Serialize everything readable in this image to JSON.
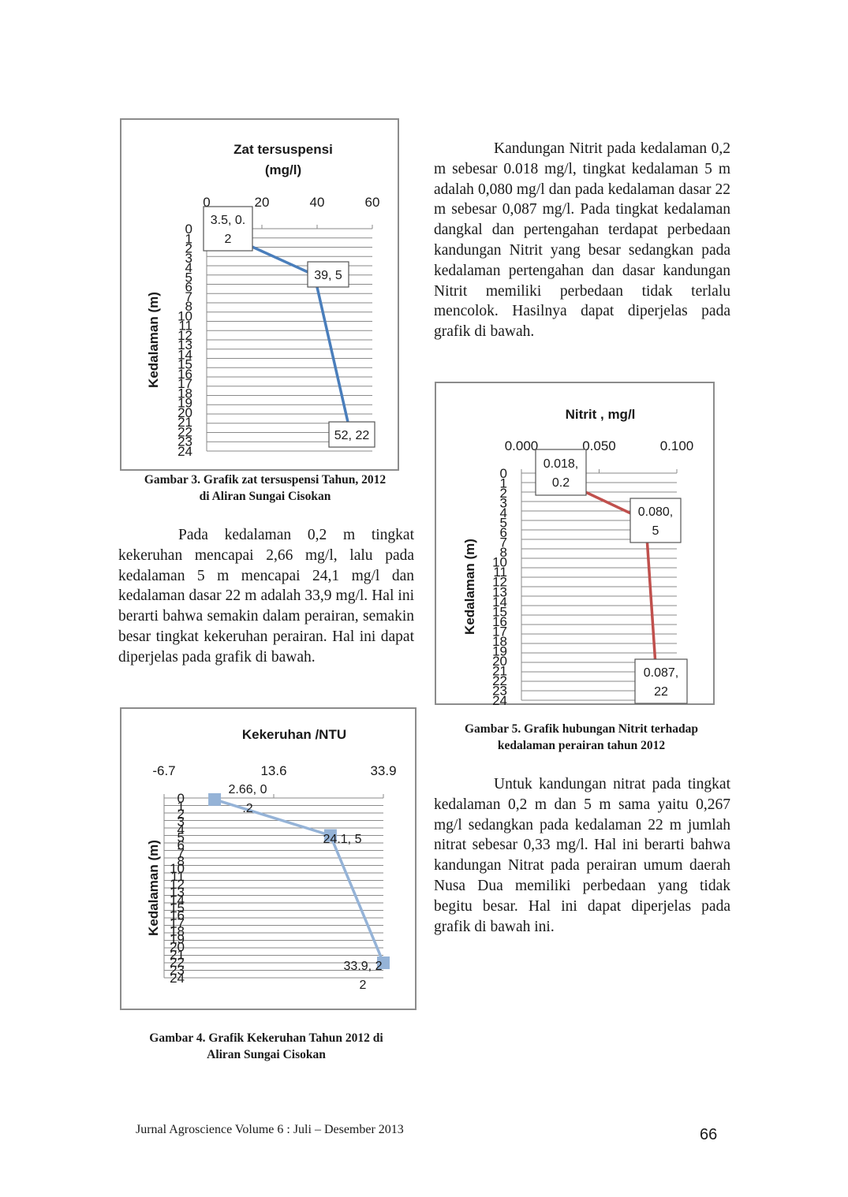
{
  "chart_data": [
    {
      "type": "line",
      "title": [
        "Zat tersuspensi",
        "(mg/l)"
      ],
      "xlabel": "",
      "ylabel": "Kedalaman (m)",
      "x_ticks": [
        "0",
        "20",
        "40",
        "60"
      ],
      "xlim": [
        0,
        60
      ],
      "y_ticks": [
        "0",
        "1",
        "2",
        "3",
        "4",
        "5",
        "6",
        "7",
        "8",
        "10",
        "11",
        "12",
        "13",
        "14",
        "15",
        "16",
        "17",
        "18",
        "19",
        "20",
        "21",
        "22",
        "23",
        "24"
      ],
      "ylim": [
        0,
        24
      ],
      "y_inverted": true,
      "grid": true,
      "color": "#4a7ebb",
      "marker": "diamond",
      "points": [
        {
          "x": 3.5,
          "y": 0.2,
          "label": [
            "3.5, 0.",
            "2"
          ]
        },
        {
          "x": 39,
          "y": 5,
          "label": [
            "39, 5"
          ]
        },
        {
          "x": 52,
          "y": 22,
          "label": [
            "52, 22"
          ]
        }
      ]
    },
    {
      "type": "line",
      "title": [
        "Kekeruhan /NTU"
      ],
      "xlabel": "",
      "ylabel": "Kedalaman (m)",
      "x_ticks": [
        "-6.7",
        "13.6",
        "33.9"
      ],
      "xlim": [
        -6.7,
        33.9
      ],
      "y_ticks": [
        "0",
        "1",
        "2",
        "3",
        "4",
        "5",
        "6",
        "7",
        "8",
        "10",
        "11",
        "12",
        "13",
        "14",
        "15",
        "16",
        "17",
        "18",
        "19",
        "20",
        "21",
        "22",
        "23",
        "24"
      ],
      "ylim": [
        0,
        24
      ],
      "y_inverted": true,
      "grid": true,
      "color": "#95b3d7",
      "marker": "square",
      "points": [
        {
          "x": 2.66,
          "y": 0.2,
          "label": [
            "2.66, 0",
            ".2"
          ]
        },
        {
          "x": 24.1,
          "y": 5,
          "label": [
            "24.1, 5"
          ]
        },
        {
          "x": 33.9,
          "y": 22,
          "label": [
            "33.9, 2",
            "2"
          ]
        }
      ]
    },
    {
      "type": "line",
      "title": [
        "Nitrit , mg/l"
      ],
      "xlabel": "",
      "ylabel": "Kedalaman (m)",
      "x_ticks": [
        "0.000",
        "0.050",
        "0.100"
      ],
      "xlim": [
        0,
        0.1
      ],
      "y_ticks": [
        "0",
        "1",
        "2",
        "3",
        "4",
        "5",
        "6",
        "7",
        "8",
        "10",
        "11",
        "12",
        "13",
        "14",
        "15",
        "16",
        "17",
        "18",
        "19",
        "20",
        "21",
        "22",
        "23",
        "24"
      ],
      "ylim": [
        0,
        24
      ],
      "y_inverted": true,
      "grid": true,
      "color": "#c0504d",
      "marker": "diamond",
      "points": [
        {
          "x": 0.018,
          "y": 0.2,
          "label": [
            "0.018,",
            "0.2"
          ]
        },
        {
          "x": 0.08,
          "y": 5,
          "label": [
            "0.080,",
            "5"
          ]
        },
        {
          "x": 0.087,
          "y": 22,
          "label": [
            "0.087,",
            "22"
          ]
        }
      ]
    }
  ],
  "captions": {
    "fig3": [
      "Gambar 3. Grafik zat tersuspensi Tahun, 2012",
      "di Aliran Sungai Cisokan"
    ],
    "fig4": [
      "Gambar 4. Grafik Kekeruhan Tahun 2012 di",
      "Aliran Sungai Cisokan"
    ],
    "fig5": [
      "Gambar 5. Grafik hubungan Nitrit terhadap",
      "kedalaman perairan tahun 2012"
    ]
  },
  "paragraphs": {
    "nitrit": "Kandungan Nitrit pada kedalaman 0,2 m sebesar 0.018 mg/l, tingkat kedalaman 5 m adalah 0,080 mg/l dan pada kedalaman dasar 22 m sebesar 0,087 mg/l. Pada tingkat kedalaman dangkal dan pertengahan terdapat perbedaan kandungan Nitrit yang besar sedangkan pada kedalaman pertengahan dan dasar kandungan Nitrit memiliki perbedaan tidak terlalu mencolok. Hasilnya dapat diperjelas pada grafik di bawah.",
    "kekeruhan": "Pada kedalaman 0,2 m tingkat kekeruhan mencapai 2,66 mg/l, lalu pada kedalaman 5 m mencapai 24,1 mg/l dan kedalaman dasar 22 m adalah 33,9 mg/l. Hal ini berarti bahwa semakin dalam perairan, semakin besar tingkat kekeruhan perairan. Hal ini dapat diperjelas pada grafik di bawah.",
    "nitrat": "Untuk kandungan nitrat pada tingkat kedalaman 0,2 m dan 5 m sama yaitu 0,267 mg/l sedangkan pada kedalaman 22 m jumlah nitrat sebesar 0,33 mg/l. Hal ini berarti bahwa kandungan Nitrat pada perairan umum daerah Nusa Dua memiliki perbedaan yang tidak begitu besar. Hal ini dapat diperjelas pada grafik di bawah ini."
  },
  "footer": {
    "journal": "Jurnal Agroscience Volume 6 : Juli – Desember 2013",
    "page": "66"
  }
}
